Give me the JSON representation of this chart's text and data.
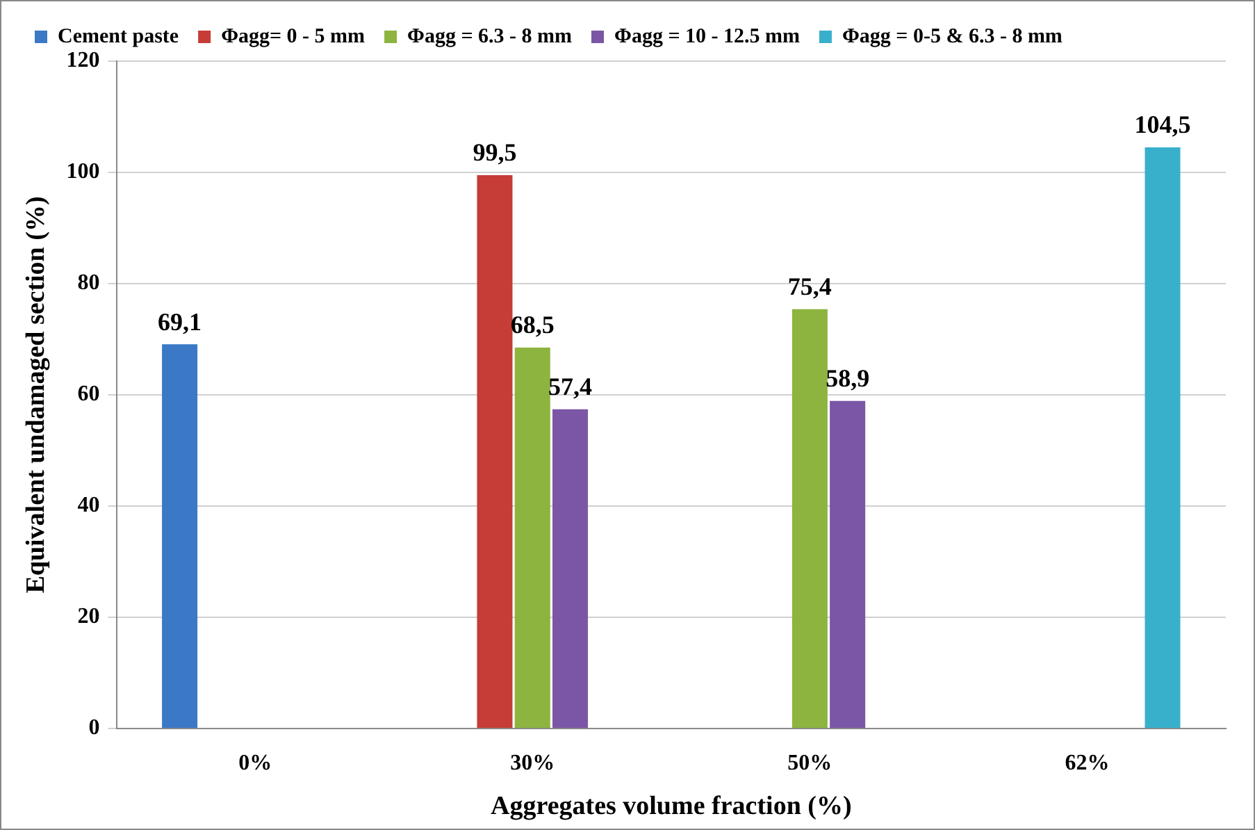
{
  "chart_data": {
    "type": "bar",
    "xlabel": "Aggregates volume fraction (%)",
    "ylabel": "Equivalent undamaged section (%)",
    "categories": [
      "0%",
      "30%",
      "50%",
      "62%"
    ],
    "series": [
      {
        "name": "Cement paste",
        "color": "#3b78c6",
        "values": [
          69.1,
          null,
          null,
          null
        ],
        "value_labels": [
          "69,1",
          null,
          null,
          null
        ]
      },
      {
        "name": "Φagg= 0 - 5 mm",
        "color": "#c63c36",
        "values": [
          null,
          99.5,
          null,
          null
        ],
        "value_labels": [
          null,
          "99,5",
          null,
          null
        ]
      },
      {
        "name": "Φagg = 6.3 - 8 mm",
        "color": "#8db43e",
        "values": [
          null,
          68.5,
          75.4,
          null
        ],
        "value_labels": [
          null,
          "68,5",
          "75,4",
          null
        ]
      },
      {
        "name": "Φagg = 10 - 12.5 mm",
        "color": "#7b56a6",
        "values": [
          null,
          57.4,
          58.9,
          null
        ],
        "value_labels": [
          null,
          "57,4",
          "58,9",
          null
        ]
      },
      {
        "name": "Φagg = 0-5 & 6.3 - 8 mm",
        "color": "#38b0cc",
        "values": [
          null,
          null,
          null,
          104.5
        ],
        "value_labels": [
          null,
          null,
          null,
          "104,5"
        ]
      }
    ],
    "ylim": [
      0,
      120
    ],
    "yticks": [
      0,
      20,
      40,
      60,
      80,
      100,
      120
    ],
    "grid": "y",
    "legend": "top"
  }
}
